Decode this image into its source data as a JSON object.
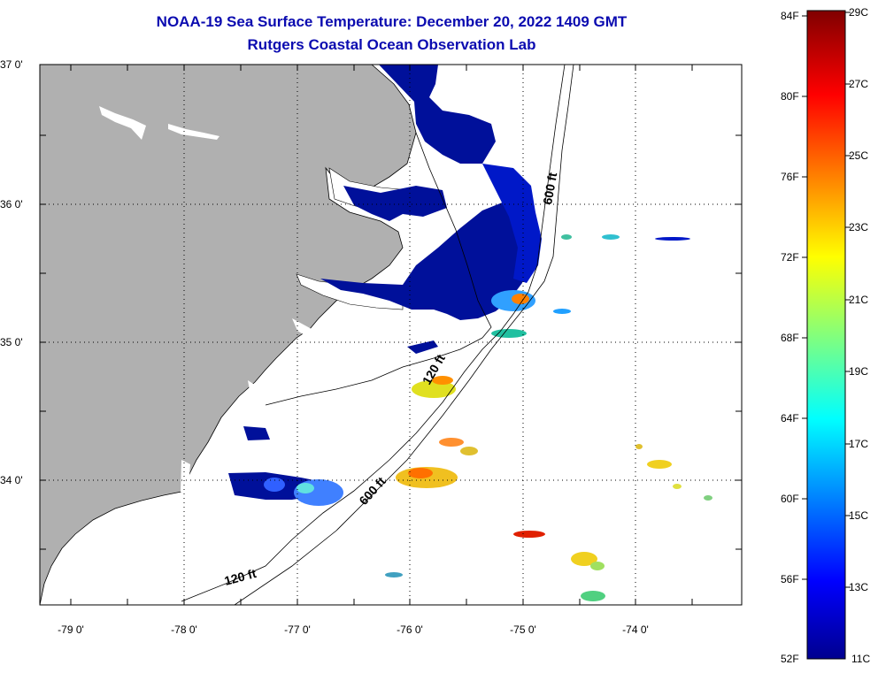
{
  "title": {
    "line1": "NOAA-19 Sea Surface Temperature:  December 20, 2022 1409 GMT",
    "line2": "Rutgers Coastal Ocean Observation Lab"
  },
  "map": {
    "lat_labels": [
      "37 0'",
      "36 0'",
      "35 0'",
      "34 0'"
    ],
    "lon_labels": [
      "-79 0'",
      "-78 0'",
      "-77 0'",
      "-76 0'",
      "-75 0'",
      "-74 0'"
    ],
    "depth_labels": [
      "600 ft",
      "120 ft",
      "600 ft",
      "120 ft"
    ],
    "colors": {
      "land": "#b0b0b0",
      "ocean_nodata": "#ffffff",
      "cold_water": "#00109a"
    }
  },
  "colorbar": {
    "fahrenheit_labels": [
      "84F",
      "80F",
      "76F",
      "72F",
      "68F",
      "64F",
      "60F",
      "56F",
      "52F"
    ],
    "celsius_labels": [
      "29C",
      "27C",
      "25C",
      "23C",
      "21C",
      "19C",
      "17C",
      "15C",
      "13C",
      "11C"
    ]
  }
}
